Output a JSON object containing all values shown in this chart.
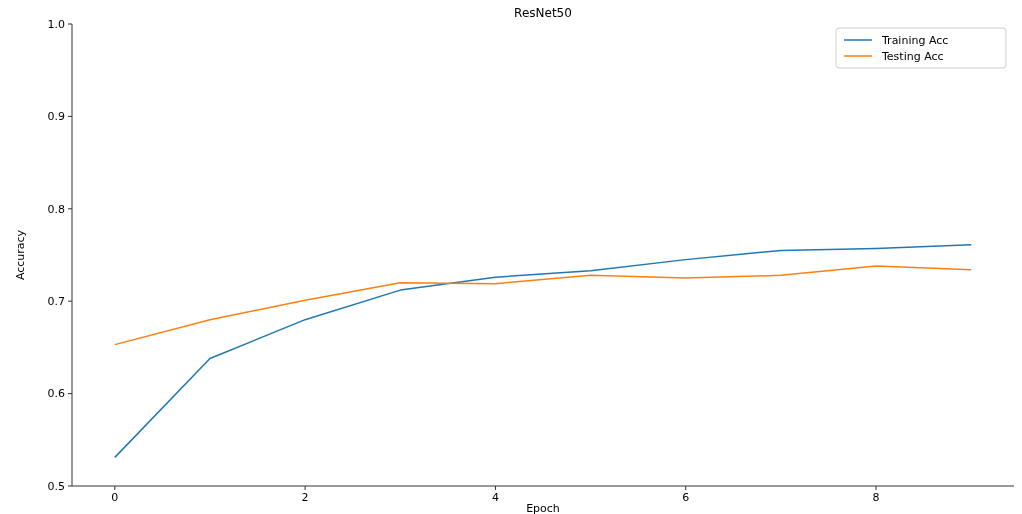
{
  "chart_data": {
    "type": "line",
    "title": "ResNet50",
    "xlabel": "Epoch",
    "ylabel": "Accuracy",
    "x": [
      0,
      1,
      2,
      3,
      4,
      5,
      6,
      7,
      8,
      9
    ],
    "series": [
      {
        "name": "Training Acc",
        "color": "#1f77b4",
        "values": [
          0.531,
          0.638,
          0.68,
          0.712,
          0.726,
          0.733,
          0.745,
          0.755,
          0.757,
          0.761
        ]
      },
      {
        "name": "Testing Acc",
        "color": "#ff7f0e",
        "values": [
          0.653,
          0.68,
          0.701,
          0.72,
          0.719,
          0.728,
          0.725,
          0.728,
          0.738,
          0.734
        ]
      }
    ],
    "xlim": [
      -0.45,
      9.45
    ],
    "xticks": [
      0,
      2,
      4,
      6,
      8
    ],
    "ylim": [
      0.5,
      1.0
    ],
    "yticks": [
      0.5,
      0.6,
      0.7,
      0.8,
      0.9,
      {
        "value": 1,
        "label": "1.0"
      }
    ],
    "legend": "top right",
    "grid": false
  }
}
